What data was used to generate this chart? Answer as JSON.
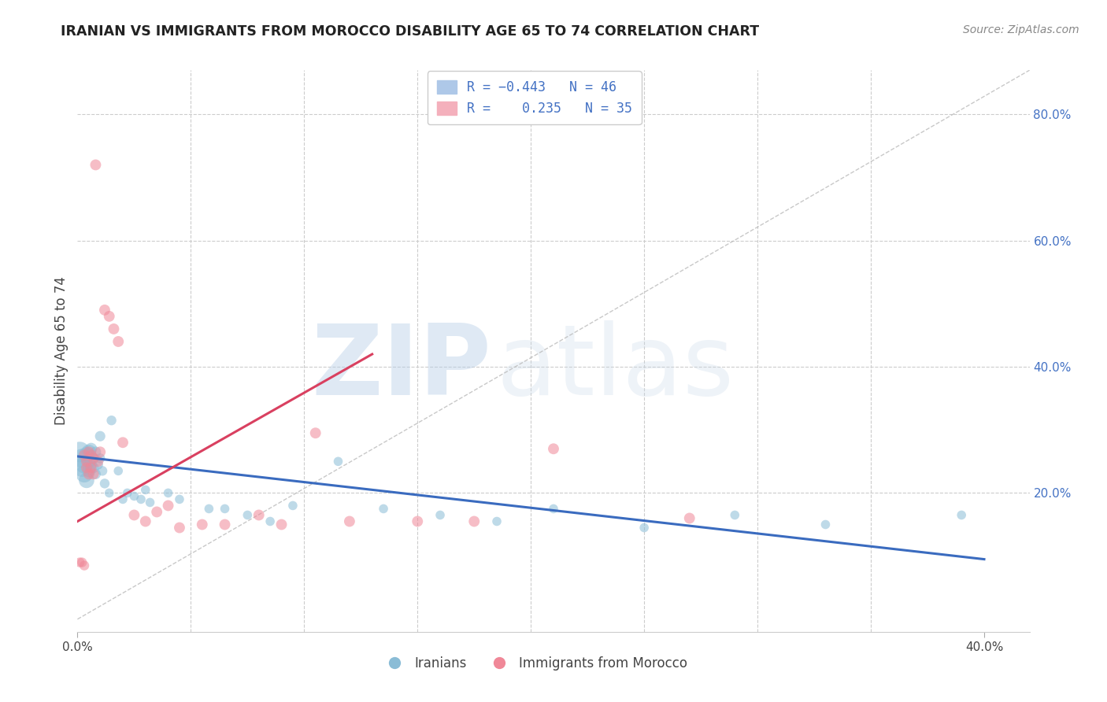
{
  "title": "IRANIAN VS IMMIGRANTS FROM MOROCCO DISABILITY AGE 65 TO 74 CORRELATION CHART",
  "source": "Source: ZipAtlas.com",
  "ylabel": "Disability Age 65 to 74",
  "xlim": [
    0.0,
    0.42
  ],
  "ylim": [
    -0.02,
    0.87
  ],
  "color_iranian": "#8abcd6",
  "color_morocco": "#f08898",
  "trend_color_iranian": "#3a6bbf",
  "trend_color_morocco": "#d94060",
  "watermark_zip": "ZIP",
  "watermark_atlas": "atlas",
  "background_color": "#ffffff",
  "grid_color": "#cccccc",
  "legend_label1": "Iranians",
  "legend_label2": "Immigrants from Morocco",
  "iranians_x": [
    0.001,
    0.002,
    0.002,
    0.003,
    0.003,
    0.004,
    0.004,
    0.005,
    0.005,
    0.005,
    0.006,
    0.006,
    0.007,
    0.007,
    0.008,
    0.008,
    0.009,
    0.01,
    0.01,
    0.011,
    0.012,
    0.014,
    0.015,
    0.018,
    0.02,
    0.022,
    0.025,
    0.028,
    0.03,
    0.032,
    0.04,
    0.045,
    0.058,
    0.065,
    0.075,
    0.085,
    0.095,
    0.115,
    0.135,
    0.16,
    0.185,
    0.21,
    0.25,
    0.29,
    0.33,
    0.39
  ],
  "iranians_y": [
    0.265,
    0.255,
    0.24,
    0.245,
    0.23,
    0.26,
    0.22,
    0.265,
    0.25,
    0.235,
    0.27,
    0.245,
    0.24,
    0.255,
    0.265,
    0.23,
    0.245,
    0.29,
    0.255,
    0.235,
    0.215,
    0.2,
    0.315,
    0.235,
    0.19,
    0.2,
    0.195,
    0.19,
    0.205,
    0.185,
    0.2,
    0.19,
    0.175,
    0.175,
    0.165,
    0.155,
    0.18,
    0.25,
    0.175,
    0.165,
    0.155,
    0.175,
    0.145,
    0.165,
    0.15,
    0.165
  ],
  "iranians_size": [
    350,
    300,
    280,
    260,
    240,
    220,
    200,
    180,
    160,
    140,
    120,
    110,
    100,
    100,
    100,
    90,
    90,
    90,
    80,
    80,
    80,
    70,
    80,
    70,
    70,
    70,
    70,
    70,
    70,
    70,
    70,
    70,
    70,
    70,
    70,
    70,
    70,
    70,
    70,
    70,
    70,
    70,
    70,
    70,
    70,
    70
  ],
  "morocco_x": [
    0.001,
    0.002,
    0.003,
    0.003,
    0.004,
    0.004,
    0.005,
    0.005,
    0.006,
    0.006,
    0.007,
    0.007,
    0.008,
    0.009,
    0.01,
    0.012,
    0.014,
    0.016,
    0.018,
    0.02,
    0.025,
    0.03,
    0.035,
    0.04,
    0.045,
    0.055,
    0.065,
    0.08,
    0.09,
    0.105,
    0.12,
    0.15,
    0.175,
    0.21,
    0.27
  ],
  "morocco_y": [
    0.09,
    0.09,
    0.085,
    0.26,
    0.25,
    0.24,
    0.265,
    0.23,
    0.26,
    0.24,
    0.255,
    0.23,
    0.72,
    0.25,
    0.265,
    0.49,
    0.48,
    0.46,
    0.44,
    0.28,
    0.165,
    0.155,
    0.17,
    0.18,
    0.145,
    0.15,
    0.15,
    0.165,
    0.15,
    0.295,
    0.155,
    0.155,
    0.155,
    0.27,
    0.16
  ],
  "morocco_size": [
    80,
    80,
    80,
    100,
    100,
    100,
    100,
    100,
    100,
    100,
    100,
    100,
    100,
    100,
    100,
    100,
    100,
    100,
    100,
    100,
    100,
    100,
    100,
    100,
    100,
    100,
    100,
    100,
    100,
    100,
    100,
    100,
    100,
    100,
    100
  ],
  "iran_trend_x0": 0.0,
  "iran_trend_y0": 0.258,
  "iran_trend_x1": 0.4,
  "iran_trend_y1": 0.095,
  "mor_trend_x0": 0.0,
  "mor_trend_y0": 0.155,
  "mor_trend_x1": 0.13,
  "mor_trend_y1": 0.42
}
